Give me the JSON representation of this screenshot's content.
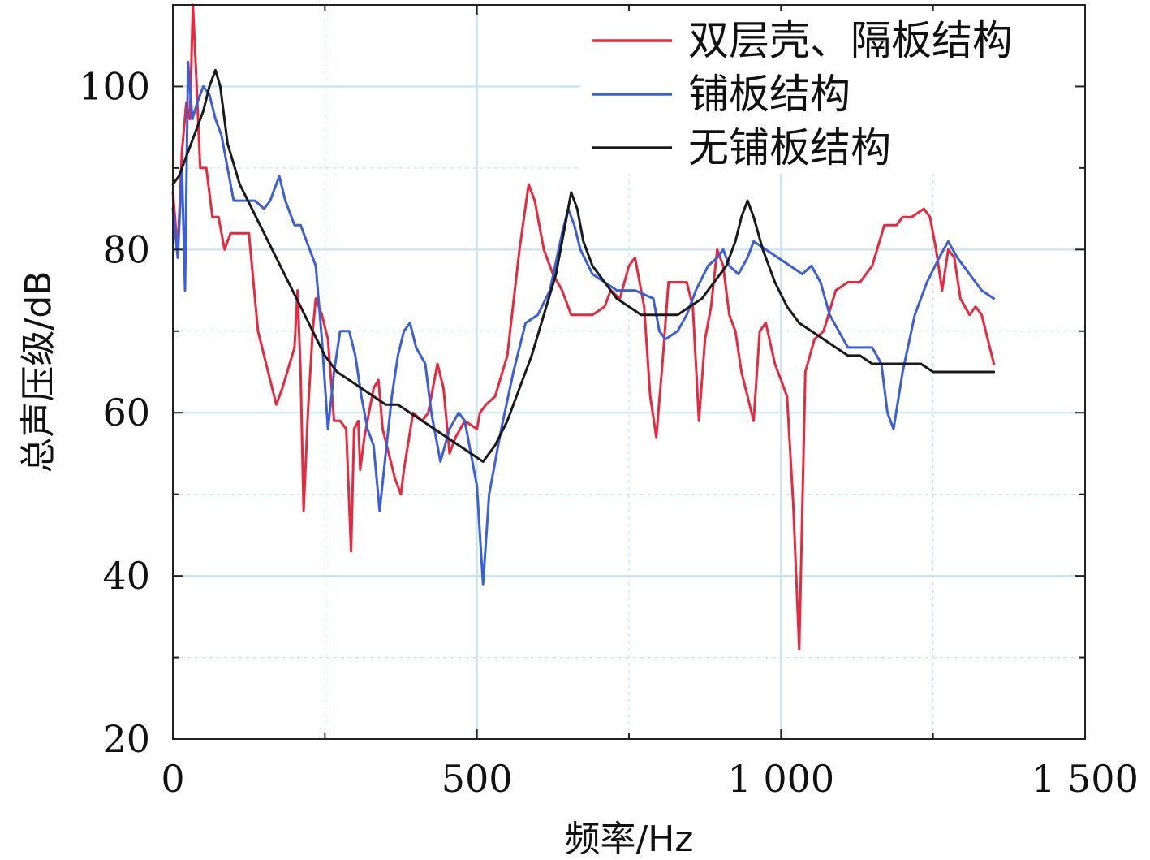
{
  "chart_data": {
    "type": "line",
    "title": "",
    "xlabel": "频率/Hz",
    "ylabel": "总声压级/dB",
    "xlim": [
      0,
      1500
    ],
    "ylim": [
      20,
      110
    ],
    "x_ticks": [
      {
        "value": 0,
        "label": "0"
      },
      {
        "value": 500,
        "label": "500"
      },
      {
        "value": 1000,
        "label": "1 000"
      },
      {
        "value": 1500,
        "label": "1 500"
      }
    ],
    "y_ticks": [
      {
        "value": 20,
        "label": "20"
      },
      {
        "value": 40,
        "label": "40"
      },
      {
        "value": 60,
        "label": "60"
      },
      {
        "value": 80,
        "label": "80"
      },
      {
        "value": 100,
        "label": "100"
      }
    ],
    "grid": true,
    "legend_position": "top-right",
    "series": [
      {
        "name": "双层壳、隔板结构",
        "color": "#e8283c",
        "points": [
          [
            0,
            87
          ],
          [
            8,
            80
          ],
          [
            15,
            92
          ],
          [
            22,
            98
          ],
          [
            28,
            96
          ],
          [
            33,
            110
          ],
          [
            38,
            102
          ],
          [
            45,
            90
          ],
          [
            55,
            90
          ],
          [
            65,
            84
          ],
          [
            75,
            84
          ],
          [
            85,
            80
          ],
          [
            95,
            82
          ],
          [
            110,
            82
          ],
          [
            125,
            82
          ],
          [
            140,
            70
          ],
          [
            160,
            64
          ],
          [
            170,
            61
          ],
          [
            180,
            63
          ],
          [
            200,
            68
          ],
          [
            205,
            75
          ],
          [
            210,
            65
          ],
          [
            215,
            48
          ],
          [
            222,
            60
          ],
          [
            230,
            70
          ],
          [
            235,
            74
          ],
          [
            245,
            72
          ],
          [
            255,
            69
          ],
          [
            265,
            59
          ],
          [
            275,
            59
          ],
          [
            285,
            58
          ],
          [
            293,
            43
          ],
          [
            298,
            58
          ],
          [
            305,
            59
          ],
          [
            308,
            53
          ],
          [
            315,
            57
          ],
          [
            330,
            63
          ],
          [
            338,
            64
          ],
          [
            345,
            58
          ],
          [
            355,
            55
          ],
          [
            365,
            52
          ],
          [
            375,
            50
          ],
          [
            380,
            53
          ],
          [
            395,
            60
          ],
          [
            410,
            59
          ],
          [
            420,
            60
          ],
          [
            435,
            66
          ],
          [
            445,
            63
          ],
          [
            455,
            55
          ],
          [
            465,
            57
          ],
          [
            480,
            59
          ],
          [
            500,
            58
          ],
          [
            505,
            60
          ],
          [
            515,
            61
          ],
          [
            530,
            62
          ],
          [
            550,
            67
          ],
          [
            570,
            80
          ],
          [
            585,
            88
          ],
          [
            595,
            86
          ],
          [
            610,
            80
          ],
          [
            625,
            77
          ],
          [
            640,
            75
          ],
          [
            655,
            72
          ],
          [
            670,
            72
          ],
          [
            690,
            72
          ],
          [
            710,
            73
          ],
          [
            720,
            75
          ],
          [
            735,
            74
          ],
          [
            750,
            78
          ],
          [
            760,
            79
          ],
          [
            775,
            73
          ],
          [
            785,
            62
          ],
          [
            795,
            57
          ],
          [
            805,
            66
          ],
          [
            815,
            76
          ],
          [
            830,
            76
          ],
          [
            845,
            76
          ],
          [
            855,
            73
          ],
          [
            865,
            59
          ],
          [
            875,
            69
          ],
          [
            885,
            73
          ],
          [
            895,
            80
          ],
          [
            905,
            78
          ],
          [
            915,
            72
          ],
          [
            925,
            70
          ],
          [
            935,
            65
          ],
          [
            945,
            62
          ],
          [
            955,
            59
          ],
          [
            965,
            70
          ],
          [
            975,
            71
          ],
          [
            990,
            66
          ],
          [
            1000,
            64
          ],
          [
            1010,
            62
          ],
          [
            1020,
            49
          ],
          [
            1030,
            31
          ],
          [
            1040,
            65
          ],
          [
            1055,
            69
          ],
          [
            1070,
            70
          ],
          [
            1090,
            75
          ],
          [
            1110,
            76
          ],
          [
            1130,
            76
          ],
          [
            1150,
            78
          ],
          [
            1170,
            83
          ],
          [
            1190,
            83
          ],
          [
            1200,
            84
          ],
          [
            1215,
            84
          ],
          [
            1235,
            85
          ],
          [
            1245,
            84
          ],
          [
            1255,
            80
          ],
          [
            1265,
            75
          ],
          [
            1275,
            80
          ],
          [
            1285,
            79
          ],
          [
            1295,
            74
          ],
          [
            1310,
            72
          ],
          [
            1320,
            73
          ],
          [
            1330,
            72
          ],
          [
            1340,
            69
          ],
          [
            1350,
            66
          ]
        ]
      },
      {
        "name": "铺板结构",
        "color": "#3a5fd8",
        "points": [
          [
            0,
            85
          ],
          [
            8,
            79
          ],
          [
            15,
            90
          ],
          [
            20,
            75
          ],
          [
            25,
            103
          ],
          [
            32,
            96
          ],
          [
            40,
            98
          ],
          [
            50,
            100
          ],
          [
            60,
            99
          ],
          [
            70,
            96
          ],
          [
            80,
            94
          ],
          [
            90,
            90
          ],
          [
            100,
            86
          ],
          [
            120,
            86
          ],
          [
            135,
            86
          ],
          [
            150,
            85
          ],
          [
            160,
            86
          ],
          [
            175,
            89
          ],
          [
            185,
            86
          ],
          [
            200,
            83
          ],
          [
            210,
            83
          ],
          [
            225,
            80
          ],
          [
            235,
            78
          ],
          [
            245,
            69
          ],
          [
            255,
            58
          ],
          [
            265,
            65
          ],
          [
            275,
            70
          ],
          [
            290,
            70
          ],
          [
            300,
            67
          ],
          [
            310,
            62
          ],
          [
            320,
            58
          ],
          [
            330,
            56
          ],
          [
            340,
            48
          ],
          [
            350,
            55
          ],
          [
            360,
            62
          ],
          [
            370,
            67
          ],
          [
            380,
            70
          ],
          [
            390,
            71
          ],
          [
            400,
            68
          ],
          [
            415,
            66
          ],
          [
            425,
            60
          ],
          [
            440,
            54
          ],
          [
            455,
            58
          ],
          [
            470,
            60
          ],
          [
            480,
            59
          ],
          [
            490,
            55
          ],
          [
            500,
            51
          ],
          [
            505,
            45
          ],
          [
            510,
            39
          ],
          [
            520,
            50
          ],
          [
            540,
            58
          ],
          [
            560,
            65
          ],
          [
            580,
            71
          ],
          [
            600,
            72
          ],
          [
            620,
            75
          ],
          [
            640,
            82
          ],
          [
            650,
            85
          ],
          [
            660,
            83
          ],
          [
            670,
            80
          ],
          [
            690,
            77
          ],
          [
            710,
            76
          ],
          [
            730,
            75
          ],
          [
            760,
            75
          ],
          [
            790,
            74
          ],
          [
            800,
            70
          ],
          [
            810,
            69
          ],
          [
            830,
            70
          ],
          [
            845,
            72
          ],
          [
            860,
            75
          ],
          [
            880,
            78
          ],
          [
            895,
            79
          ],
          [
            905,
            80
          ],
          [
            915,
            78
          ],
          [
            930,
            77
          ],
          [
            945,
            79
          ],
          [
            955,
            81
          ],
          [
            975,
            80
          ],
          [
            995,
            79
          ],
          [
            1015,
            78
          ],
          [
            1035,
            77
          ],
          [
            1050,
            78
          ],
          [
            1065,
            76
          ],
          [
            1080,
            72
          ],
          [
            1095,
            70
          ],
          [
            1110,
            68
          ],
          [
            1130,
            68
          ],
          [
            1150,
            68
          ],
          [
            1165,
            66
          ],
          [
            1175,
            60
          ],
          [
            1185,
            58
          ],
          [
            1200,
            65
          ],
          [
            1220,
            72
          ],
          [
            1240,
            76
          ],
          [
            1260,
            79
          ],
          [
            1275,
            81
          ],
          [
            1290,
            79
          ],
          [
            1310,
            77
          ],
          [
            1330,
            75
          ],
          [
            1350,
            74
          ]
        ]
      },
      {
        "name": "无铺板结构",
        "color": "#1a1a1a",
        "points": [
          [
            0,
            88
          ],
          [
            10,
            89
          ],
          [
            20,
            91
          ],
          [
            30,
            93
          ],
          [
            40,
            95
          ],
          [
            50,
            97
          ],
          [
            60,
            100
          ],
          [
            70,
            102
          ],
          [
            78,
            100
          ],
          [
            90,
            93
          ],
          [
            110,
            88
          ],
          [
            130,
            85
          ],
          [
            150,
            82
          ],
          [
            170,
            79
          ],
          [
            190,
            76
          ],
          [
            210,
            73
          ],
          [
            230,
            70
          ],
          [
            250,
            67
          ],
          [
            270,
            65
          ],
          [
            290,
            64
          ],
          [
            310,
            63
          ],
          [
            330,
            62
          ],
          [
            350,
            61
          ],
          [
            370,
            61
          ],
          [
            390,
            60
          ],
          [
            410,
            59
          ],
          [
            430,
            58
          ],
          [
            450,
            57
          ],
          [
            470,
            56
          ],
          [
            490,
            55
          ],
          [
            510,
            54
          ],
          [
            530,
            56
          ],
          [
            550,
            59
          ],
          [
            570,
            63
          ],
          [
            590,
            67
          ],
          [
            610,
            72
          ],
          [
            630,
            77
          ],
          [
            645,
            83
          ],
          [
            655,
            87
          ],
          [
            665,
            85
          ],
          [
            675,
            81
          ],
          [
            690,
            78
          ],
          [
            710,
            76
          ],
          [
            730,
            74
          ],
          [
            750,
            73
          ],
          [
            770,
            72
          ],
          [
            790,
            72
          ],
          [
            810,
            72
          ],
          [
            830,
            72
          ],
          [
            850,
            73
          ],
          [
            870,
            74
          ],
          [
            890,
            76
          ],
          [
            910,
            78
          ],
          [
            925,
            81
          ],
          [
            935,
            84
          ],
          [
            945,
            86
          ],
          [
            955,
            84
          ],
          [
            970,
            80
          ],
          [
            990,
            76
          ],
          [
            1010,
            73
          ],
          [
            1030,
            71
          ],
          [
            1050,
            70
          ],
          [
            1070,
            69
          ],
          [
            1090,
            68
          ],
          [
            1110,
            67
          ],
          [
            1130,
            67
          ],
          [
            1150,
            66
          ],
          [
            1170,
            66
          ],
          [
            1190,
            66
          ],
          [
            1210,
            66
          ],
          [
            1230,
            66
          ],
          [
            1250,
            65
          ],
          [
            1270,
            65
          ],
          [
            1290,
            65
          ],
          [
            1310,
            65
          ],
          [
            1330,
            65
          ],
          [
            1350,
            65
          ]
        ]
      }
    ]
  }
}
